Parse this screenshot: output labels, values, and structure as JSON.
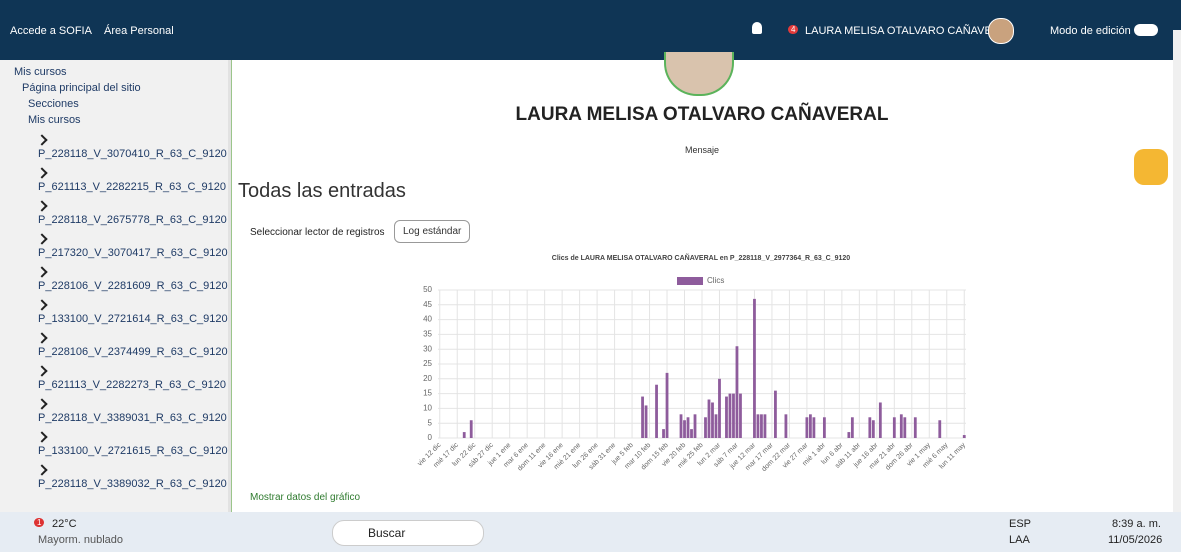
{
  "header": {
    "links": [
      "Accede a SOFIA",
      "Área Personal"
    ],
    "chat_badge": "4",
    "user": "LAURA MELISA OTALVARO CAÑAVERAL",
    "edit_mode": "Modo de edición"
  },
  "sidebar": {
    "root": "Mis cursos",
    "home": "Página principal del sitio",
    "sections": "Secciones",
    "my_courses": "Mis cursos",
    "courses": [
      "P_228118_V_3070410_R_63_C_9120",
      "P_621113_V_2282215_R_63_C_9120",
      "P_228118_V_2675778_R_63_C_9120",
      "P_217320_V_3070417_R_63_C_9120",
      "P_228106_V_2281609_R_63_C_9120",
      "P_133100_V_2721614_R_63_C_9120",
      "P_228106_V_2374499_R_63_C_9120",
      "P_621113_V_2282273_R_63_C_9120",
      "P_228118_V_3389031_R_63_C_9120",
      "P_133100_V_2721615_R_63_C_9120",
      "P_228118_V_3389032_R_63_C_9120"
    ]
  },
  "profile": {
    "name": "LAURA MELISA OTALVARO CAÑAVERAL",
    "message": "Mensaje"
  },
  "main": {
    "heading": "Todas las entradas",
    "selector_label": "Seleccionar lector de registros",
    "selector_value": "Log estándar",
    "show_data": "Mostrar datos del gráfico"
  },
  "chart_data": {
    "type": "bar",
    "title": "Clics de LAURA MELISA OTALVARO CAÑAVERAL en P_228118_V_2977364_R_63_C_9120",
    "categories": [
      "vie 12 dic",
      null,
      null,
      null,
      null,
      "mié 17 dic",
      null,
      null,
      null,
      null,
      "lun 22 dic",
      null,
      null,
      null,
      null,
      "sáb 27 dic",
      null,
      null,
      null,
      null,
      "jue 1 ene",
      null,
      null,
      null,
      null,
      "mar 6 ene",
      null,
      null,
      null,
      null,
      "dom 11 ene",
      null,
      null,
      null,
      null,
      "vie 16 ene",
      null,
      null,
      null,
      null,
      "mié 21 ene",
      null,
      null,
      null,
      null,
      "lun 26 ene",
      null,
      null,
      null,
      null,
      "sáb 31 ene",
      null,
      null,
      null,
      null,
      "jue 5 feb",
      null,
      null,
      null,
      null,
      "mar 10 feb",
      null,
      null,
      null,
      null,
      "dom 15 feb",
      null,
      null,
      null,
      null,
      "vie 20 feb",
      null,
      null,
      null,
      null,
      "mié 25 feb",
      null,
      null,
      null,
      null,
      "lun 2 mar",
      null,
      null,
      null,
      null,
      "sáb 7 mar",
      null,
      null,
      null,
      null,
      "jue 12 mar",
      null,
      null,
      null,
      null,
      "mar 17 mar",
      null,
      null,
      null,
      null,
      "dom 22 mar",
      null,
      null,
      null,
      null,
      "vie 27 mar",
      null,
      null,
      null,
      null,
      "mié 1 abr",
      null,
      null,
      null,
      null,
      "lun 6 abr",
      null,
      null,
      null,
      null,
      "sáb 11 abr",
      null,
      null,
      null,
      null,
      "jue 16 abr",
      null,
      null,
      null,
      null,
      "mar 21 abr",
      null,
      null,
      null,
      null,
      "dom 26 abr",
      null,
      null,
      null,
      null,
      "vie 1 may",
      null,
      null,
      null,
      null,
      "mié 6 may",
      null,
      null,
      null,
      null,
      "lun 11 may"
    ],
    "series": [
      {
        "name": "Clics",
        "color": "#8e5c9c",
        "values": [
          0,
          0,
          0,
          0,
          0,
          0,
          0,
          2,
          0,
          6,
          0,
          0,
          0,
          0,
          0,
          0,
          0,
          0,
          0,
          0,
          0,
          0,
          0,
          0,
          0,
          0,
          0,
          0,
          0,
          0,
          0,
          0,
          0,
          0,
          0,
          0,
          0,
          0,
          0,
          0,
          0,
          0,
          0,
          0,
          0,
          0,
          0,
          0,
          0,
          0,
          0,
          0,
          0,
          0,
          0,
          0,
          0,
          0,
          14,
          11,
          0,
          0,
          18,
          0,
          3,
          22,
          0,
          0,
          0,
          8,
          6,
          7,
          3,
          8,
          0,
          0,
          7,
          13,
          12,
          8,
          20,
          0,
          14,
          15,
          15,
          31,
          15,
          0,
          0,
          0,
          47,
          8,
          8,
          8,
          0,
          0,
          16,
          0,
          0,
          8,
          0,
          0,
          0,
          0,
          0,
          7,
          8,
          7,
          0,
          0,
          7,
          0,
          0,
          0,
          0,
          0,
          0,
          2,
          7,
          0,
          0,
          0,
          0,
          7,
          6,
          0,
          12,
          0,
          0,
          0,
          7,
          0,
          8,
          7,
          0,
          0,
          7,
          0,
          0,
          0,
          0,
          0,
          0,
          6,
          0,
          0,
          0,
          0,
          0,
          0,
          1
        ]
      }
    ],
    "ylim": [
      0,
      50
    ],
    "yticks": [
      0,
      5,
      10,
      15,
      20,
      25,
      30,
      35,
      40,
      45,
      50
    ],
    "grid": true
  },
  "taskbar": {
    "weather_badge": "1",
    "temperature": "22°C",
    "weather": "Mayorm. nublado",
    "search": "Buscar",
    "lang1": "ESP",
    "lang2": "LAA",
    "time": "8:39 a. m.",
    "date": "11/05/2026"
  }
}
